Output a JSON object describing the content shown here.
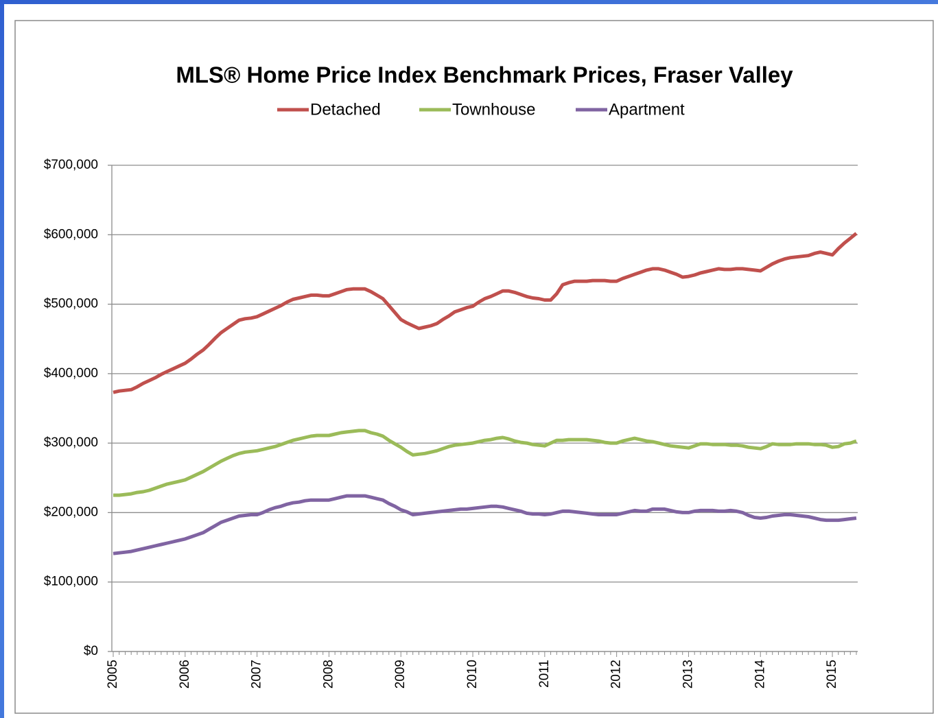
{
  "chart_data": {
    "type": "line",
    "title": "MLS® Home Price Index Benchmark Prices, Fraser Valley",
    "legend": "top",
    "grid": true,
    "categories": [
      "2005",
      null,
      null,
      null,
      null,
      null,
      null,
      null,
      null,
      null,
      null,
      null,
      "2006",
      null,
      null,
      null,
      null,
      null,
      null,
      null,
      null,
      null,
      null,
      null,
      "2007",
      null,
      null,
      null,
      null,
      null,
      null,
      null,
      null,
      null,
      null,
      null,
      "2008",
      null,
      null,
      null,
      null,
      null,
      null,
      null,
      null,
      null,
      null,
      null,
      "2009",
      null,
      null,
      null,
      null,
      null,
      null,
      null,
      null,
      null,
      null,
      null,
      "2010",
      null,
      null,
      null,
      null,
      null,
      null,
      null,
      null,
      null,
      null,
      null,
      "2011",
      null,
      null,
      null,
      null,
      null,
      null,
      null,
      null,
      null,
      null,
      null,
      "2012",
      null,
      null,
      null,
      null,
      null,
      null,
      null,
      null,
      null,
      null,
      null,
      "2013",
      null,
      null,
      null,
      null,
      null,
      null,
      null,
      null,
      null,
      null,
      null,
      "2014",
      null,
      null,
      null,
      null,
      null,
      null,
      null,
      null,
      null,
      null,
      null,
      "2015",
      null,
      null,
      null,
      null
    ],
    "ylim": [
      0,
      700000
    ],
    "yticks": [
      {
        "value": 0,
        "label": "$0"
      },
      {
        "value": 100000,
        "label": "$100,000"
      },
      {
        "value": 200000,
        "label": "$200,000"
      },
      {
        "value": 300000,
        "label": "$300,000"
      },
      {
        "value": 400000,
        "label": "$400,000"
      },
      {
        "value": 500000,
        "label": "$500,000"
      },
      {
        "value": 600000,
        "label": "$600,000"
      },
      {
        "value": 700000,
        "label": "$700,000"
      }
    ],
    "series": [
      {
        "name": "Detached",
        "color": "#c0504d",
        "values": [
          373000,
          375000,
          376000,
          377000,
          381000,
          386000,
          390000,
          394000,
          399000,
          403000,
          407000,
          411000,
          415000,
          421000,
          428000,
          434000,
          442000,
          451000,
          459000,
          465000,
          471000,
          477000,
          479000,
          480000,
          482000,
          486000,
          490000,
          494000,
          498000,
          503000,
          507000,
          509000,
          511000,
          513000,
          513000,
          512000,
          512000,
          515000,
          518000,
          521000,
          522000,
          522000,
          522000,
          518000,
          513000,
          508000,
          498000,
          488000,
          478000,
          473000,
          469000,
          465000,
          467000,
          469000,
          472000,
          478000,
          483000,
          489000,
          492000,
          495000,
          497000,
          503000,
          508000,
          511000,
          515000,
          519000,
          519000,
          517000,
          514000,
          511000,
          509000,
          508000,
          506000,
          506000,
          515000,
          528000,
          531000,
          533000,
          533000,
          533000,
          534000,
          534000,
          534000,
          533000,
          533000,
          537000,
          540000,
          543000,
          546000,
          549000,
          551000,
          551000,
          549000,
          546000,
          543000,
          539000,
          540000,
          542000,
          545000,
          547000,
          549000,
          551000,
          550000,
          550000,
          551000,
          551000,
          550000,
          549000,
          548000,
          553000,
          558000,
          562000,
          565000,
          567000,
          568000,
          569000,
          570000,
          573000,
          575000,
          573000,
          571000,
          580000,
          588000,
          595000,
          602000
        ]
      },
      {
        "name": "Townhouse",
        "color": "#9bbb59",
        "values": [
          225000,
          225000,
          226000,
          227000,
          229000,
          230000,
          232000,
          235000,
          238000,
          241000,
          243000,
          245000,
          247000,
          251000,
          255000,
          259000,
          264000,
          269000,
          274000,
          278000,
          282000,
          285000,
          287000,
          288000,
          289000,
          291000,
          293000,
          295000,
          298000,
          301000,
          304000,
          306000,
          308000,
          310000,
          311000,
          311000,
          311000,
          313000,
          315000,
          316000,
          317000,
          318000,
          318000,
          315000,
          313000,
          310000,
          304000,
          299000,
          294000,
          288000,
          283000,
          284000,
          285000,
          287000,
          289000,
          292000,
          295000,
          297000,
          298000,
          299000,
          300000,
          302000,
          304000,
          305000,
          307000,
          308000,
          306000,
          303000,
          301000,
          300000,
          298000,
          297000,
          296000,
          300000,
          304000,
          304000,
          305000,
          305000,
          305000,
          305000,
          304000,
          303000,
          301000,
          300000,
          300000,
          303000,
          305000,
          307000,
          305000,
          303000,
          302000,
          300000,
          298000,
          296000,
          295000,
          294000,
          293000,
          296000,
          299000,
          299000,
          298000,
          298000,
          298000,
          297000,
          297000,
          296000,
          294000,
          293000,
          292000,
          295000,
          299000,
          298000,
          298000,
          298000,
          299000,
          299000,
          299000,
          298000,
          298000,
          297000,
          294000,
          295000,
          299000,
          300000,
          303000
        ]
      },
      {
        "name": "Apartment",
        "color": "#8064a2",
        "values": [
          141000,
          142000,
          143000,
          144000,
          146000,
          148000,
          150000,
          152000,
          154000,
          156000,
          158000,
          160000,
          162000,
          165000,
          168000,
          171000,
          176000,
          181000,
          186000,
          189000,
          192000,
          195000,
          196000,
          197000,
          197000,
          200000,
          204000,
          207000,
          209000,
          212000,
          214000,
          215000,
          217000,
          218000,
          218000,
          218000,
          218000,
          220000,
          222000,
          224000,
          224000,
          224000,
          224000,
          222000,
          220000,
          218000,
          213000,
          209000,
          204000,
          201000,
          197000,
          198000,
          199000,
          200000,
          201000,
          202000,
          203000,
          204000,
          205000,
          205000,
          206000,
          207000,
          208000,
          209000,
          209000,
          208000,
          206000,
          204000,
          202000,
          199000,
          198000,
          198000,
          197000,
          198000,
          200000,
          202000,
          202000,
          201000,
          200000,
          199000,
          198000,
          197000,
          197000,
          197000,
          197000,
          199000,
          201000,
          203000,
          202000,
          202000,
          205000,
          205000,
          205000,
          203000,
          201000,
          200000,
          200000,
          202000,
          203000,
          203000,
          203000,
          202000,
          202000,
          203000,
          202000,
          200000,
          196000,
          193000,
          192000,
          193000,
          195000,
          196000,
          197000,
          197000,
          196000,
          195000,
          194000,
          192000,
          190000,
          189000,
          189000,
          189000,
          190000,
          191000,
          192000
        ]
      }
    ]
  }
}
